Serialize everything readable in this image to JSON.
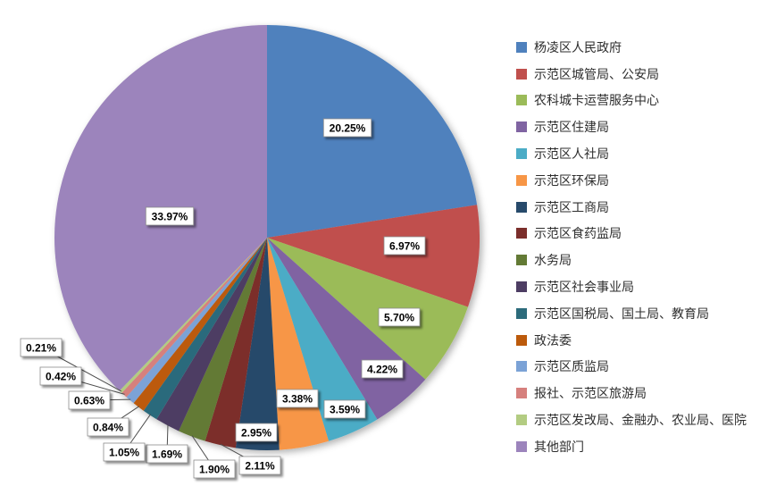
{
  "chart_data": {
    "type": "pie",
    "title": "",
    "legend_position": "right",
    "background": "#FFFFFF",
    "label_format": "percent",
    "slices": [
      {
        "label": "杨凌区人民政府",
        "value": 20.25,
        "percent_label": "20.25%",
        "color": "#4F81BD"
      },
      {
        "label": "示范区城管局、公安局",
        "value": 6.97,
        "percent_label": "6.97%",
        "color": "#C0504D"
      },
      {
        "label": "农科城卡运营服务中心",
        "value": 5.7,
        "percent_label": "5.70%",
        "color": "#9BBB59"
      },
      {
        "label": "示范区住建局",
        "value": 4.22,
        "percent_label": "4.22%",
        "color": "#8064A2"
      },
      {
        "label": "示范区人社局",
        "value": 3.59,
        "percent_label": "3.59%",
        "color": "#4BACC6"
      },
      {
        "label": "示范区环保局",
        "value": 3.38,
        "percent_label": "3.38%",
        "color": "#F79646"
      },
      {
        "label": "示范区工商局",
        "value": 2.95,
        "percent_label": "2.95%",
        "color": "#274A6B"
      },
      {
        "label": "示范区食药监局",
        "value": 2.11,
        "percent_label": "2.11%",
        "color": "#7B2E2B"
      },
      {
        "label": "水务局",
        "value": 1.9,
        "percent_label": "1.90%",
        "color": "#637A35"
      },
      {
        "label": "示范区社会事业局",
        "value": 1.69,
        "percent_label": "1.69%",
        "color": "#4D3D63"
      },
      {
        "label": "示范区国税局、国土局、教育局",
        "value": 1.05,
        "percent_label": "1.05%",
        "color": "#2C6B7B"
      },
      {
        "label": "政法委",
        "value": 0.84,
        "percent_label": "0.84%",
        "color": "#BC5A0B"
      },
      {
        "label": "示范区质监局",
        "value": 0.63,
        "percent_label": "0.63%",
        "color": "#7BA2D6"
      },
      {
        "label": "报社、示范区旅游局",
        "value": 0.42,
        "percent_label": "0.42%",
        "color": "#D6807D"
      },
      {
        "label": "示范区发改局、金融办、农业局、医院",
        "value": 0.21,
        "percent_label": "0.21%",
        "color": "#B3CC82"
      },
      {
        "label": "其他部门",
        "value": 33.97,
        "percent_label": "33.97%",
        "color": "#9C84BC"
      }
    ]
  }
}
